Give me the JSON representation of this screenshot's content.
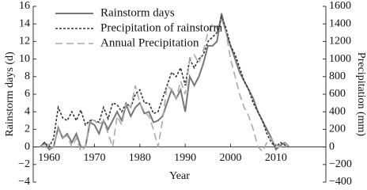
{
  "chart_data": {
    "type": "line",
    "x_label": "Year",
    "y_label": "Rainstorm days (d)",
    "y2_label": "Precipitation (mm)",
    "x": [
      1958,
      1959,
      1960,
      1961,
      1962,
      1963,
      1964,
      1965,
      1966,
      1967,
      1968,
      1969,
      1970,
      1971,
      1972,
      1973,
      1974,
      1975,
      1976,
      1977,
      1978,
      1979,
      1980,
      1981,
      1982,
      1983,
      1984,
      1985,
      1986,
      1987,
      1988,
      1989,
      1990,
      1991,
      1992,
      1993,
      1994,
      1995,
      1996,
      1997,
      1998,
      1999,
      2000,
      2001,
      2002,
      2003,
      2004,
      2005,
      2006,
      2007,
      2008,
      2009,
      2010,
      2011,
      2012,
      2013
    ],
    "series": [
      {
        "name": "Rainstorm days",
        "color": "#777777",
        "axis": "y",
        "style": "solid",
        "values": [
          0,
          0.5,
          -0.3,
          0,
          2.2,
          1,
          1.5,
          0.5,
          1.5,
          0,
          0,
          2.8,
          2.5,
          1.5,
          3,
          2,
          3,
          4,
          3,
          4.8,
          3.5,
          4.5,
          5,
          3.8,
          4,
          2.8,
          3,
          3.5,
          5,
          6.5,
          5.5,
          6.5,
          4,
          8,
          7,
          8,
          9.5,
          11.5,
          11.5,
          12,
          15.2,
          13,
          11.5,
          10,
          8.5,
          7.5,
          6.5,
          5.5,
          4,
          3,
          2,
          1,
          -0.3,
          0.2,
          0.5,
          0
        ]
      },
      {
        "name": "Precipitation of rainstorm",
        "color": "#333333",
        "axis": "y2",
        "style": "dotted",
        "values": [
          0,
          50,
          0,
          100,
          450,
          330,
          300,
          400,
          300,
          420,
          250,
          300,
          300,
          280,
          450,
          320,
          500,
          480,
          400,
          500,
          450,
          600,
          650,
          500,
          500,
          380,
          400,
          550,
          700,
          850,
          800,
          900,
          700,
          1000,
          900,
          1000,
          1050,
          1200,
          1250,
          1300,
          1480,
          1350,
          1150,
          1050,
          900,
          750,
          650,
          500,
          400,
          300,
          150,
          50,
          0,
          50,
          20,
          0
        ]
      },
      {
        "name": "Annual Precipitation",
        "color": "#aaaaaa",
        "axis": "y2",
        "style": "dashed",
        "values": [
          0,
          30,
          -20,
          0,
          200,
          100,
          130,
          0,
          100,
          -50,
          0,
          320,
          300,
          250,
          300,
          150,
          0,
          350,
          250,
          500,
          450,
          700,
          500,
          400,
          350,
          200,
          0,
          300,
          700,
          650,
          550,
          750,
          600,
          1000,
          1050,
          950,
          1100,
          1300,
          1400,
          1350,
          1450,
          1300,
          1000,
          800,
          600,
          450,
          350,
          200,
          0,
          -50,
          50,
          100,
          0,
          0,
          50,
          0
        ]
      }
    ],
    "xlim": [
      1956.5,
      2021
    ],
    "xticks": [
      1960,
      1970,
      1980,
      1990,
      2000,
      2010
    ],
    "ylim": [
      -4,
      16
    ],
    "yticks": [
      {
        "value": -4,
        "label": "−4"
      },
      {
        "value": -2,
        "label": "−2"
      },
      0,
      2,
      4,
      6,
      8,
      10,
      12,
      14,
      16
    ],
    "y2lim": [
      -400,
      1600
    ],
    "y2ticks": [
      {
        "value": -400,
        "label": "−400"
      },
      {
        "value": -200,
        "label": "−200"
      },
      0,
      200,
      400,
      600,
      800,
      1000,
      1200,
      1400,
      1600
    ],
    "legend": "upper-left"
  }
}
